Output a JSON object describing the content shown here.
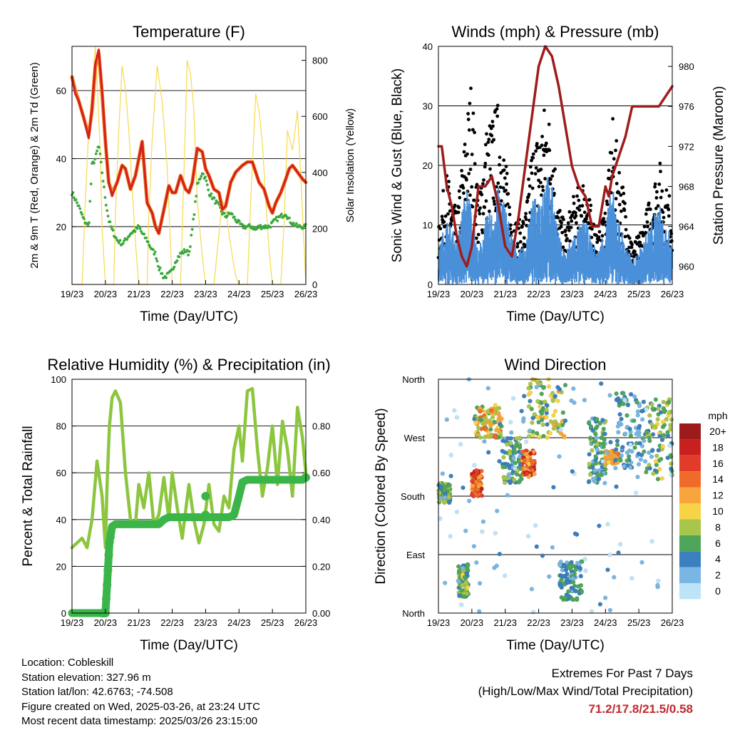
{
  "x_ticks": [
    "19/23",
    "20/23",
    "21/23",
    "22/23",
    "23/23",
    "24/23",
    "25/23",
    "26/23"
  ],
  "xlabel": "Time (Day/UTC)",
  "info": {
    "location": "Location: Cobleskill",
    "elevation": "Station elevation: 327.96 m",
    "latlon": "Station lat/lon: 42.6763; -74.508",
    "created": "Figure created on Wed, 2025-03-26, at 23:24 UTC",
    "recent": "Most recent data timestamp: 2025/03/26 23:15:00"
  },
  "extremes": {
    "title": "Extremes For Past 7 Days",
    "subtitle": "(High/Low/Max Wind/Total Precipitation)",
    "values": "71.2/17.8/21.5/0.58"
  },
  "colors": {
    "temp": "#d62020",
    "temp9": "#f08a1c",
    "dewpoint": "#3aa83a",
    "solar": "#f7d94c",
    "wind": "#4a90d9",
    "gust": "#000000",
    "pressure": "#a01c1c",
    "rh": "#8cc63f",
    "precip": "#3bb54a"
  },
  "chart_data": [
    {
      "type": "line",
      "title": "Temperature (F)",
      "ylabel": "2m & 9m T (Red, Orange) & 2m Td (Green)",
      "y2label": "Solar Insolation (Yellow)",
      "ylim": [
        3,
        73
      ],
      "yticks": [
        20,
        40,
        60
      ],
      "y2lim": [
        0,
        850
      ],
      "y2ticks": [
        0,
        200,
        400,
        600,
        800
      ],
      "x": [
        0,
        0.1,
        0.2,
        0.35,
        0.5,
        0.6,
        0.7,
        0.8,
        0.9,
        1.0,
        1.1,
        1.2,
        1.35,
        1.5,
        1.6,
        1.75,
        1.9,
        2.0,
        2.1,
        2.25,
        2.4,
        2.5,
        2.6,
        2.75,
        2.9,
        3.0,
        3.1,
        3.25,
        3.4,
        3.5,
        3.6,
        3.75,
        3.9,
        4.0,
        4.1,
        4.25,
        4.4,
        4.5,
        4.6,
        4.75,
        4.9,
        5.0,
        5.1,
        5.25,
        5.4,
        5.5,
        5.6,
        5.75,
        5.9,
        6.0,
        6.1,
        6.25,
        6.4,
        6.5,
        6.6,
        6.75,
        6.9,
        7.0
      ],
      "series": [
        {
          "name": "2m T",
          "values": [
            64,
            59,
            57,
            52,
            46,
            55,
            68,
            72,
            60,
            45,
            33,
            29,
            33,
            38,
            37,
            31,
            35,
            40,
            45,
            27,
            24,
            20,
            18,
            25,
            32,
            30,
            30,
            35,
            31,
            30,
            33,
            43,
            42,
            37,
            35,
            31,
            30,
            25,
            26,
            33,
            36,
            37,
            38,
            39,
            39,
            36,
            33,
            31,
            26,
            24,
            27,
            30,
            34,
            37,
            38,
            36,
            34,
            33
          ]
        },
        {
          "name": "9m T",
          "values": [
            64,
            60,
            57,
            52,
            47,
            54,
            67,
            71,
            59,
            45,
            33,
            30,
            33,
            38,
            37,
            31,
            35,
            40,
            45,
            27,
            24,
            20,
            18,
            25,
            32,
            30,
            30,
            35,
            31,
            30,
            33,
            43,
            42,
            37,
            35,
            31,
            30,
            25,
            26,
            33,
            36,
            37,
            38,
            39,
            39,
            36,
            33,
            31,
            26,
            24,
            27,
            30,
            34,
            37,
            38,
            36,
            34,
            33
          ]
        },
        {
          "name": "2m Td",
          "values": [
            30,
            28,
            26,
            22,
            20,
            38,
            40,
            44,
            36,
            28,
            22,
            19,
            16,
            15,
            16,
            18,
            19,
            20,
            18,
            16,
            13,
            12,
            8,
            5,
            6,
            7,
            10,
            12,
            13,
            12,
            19,
            32,
            36,
            34,
            30,
            28,
            26,
            24,
            23,
            24,
            22,
            21,
            20,
            20,
            20,
            19,
            20,
            20,
            20,
            21,
            22,
            23,
            24,
            22,
            21,
            20,
            20,
            20
          ]
        }
      ],
      "solar": {
        "x": [
          0,
          0.3,
          0.4,
          0.5,
          0.6,
          0.7,
          0.8,
          0.85,
          0.9,
          1.0,
          1.25,
          1.3,
          1.4,
          1.5,
          1.6,
          1.7,
          1.8,
          1.9,
          2.0,
          2.25,
          2.3,
          2.4,
          2.55,
          2.7,
          2.85,
          3.0,
          3.25,
          3.35,
          3.45,
          3.55,
          3.65,
          3.75,
          3.9,
          4.0,
          4.25,
          4.35,
          4.5,
          4.6,
          4.7,
          4.8,
          4.9,
          5.0,
          5.25,
          5.35,
          5.5,
          5.6,
          5.7,
          5.8,
          5.9,
          6.0,
          6.25,
          6.35,
          6.45,
          6.6,
          6.75,
          6.85,
          7.0
        ],
        "values": [
          0,
          0,
          300,
          550,
          700,
          850,
          600,
          450,
          200,
          0,
          0,
          250,
          550,
          780,
          700,
          550,
          350,
          150,
          0,
          0,
          250,
          520,
          780,
          650,
          420,
          0,
          0,
          400,
          800,
          750,
          620,
          300,
          100,
          0,
          0,
          120,
          300,
          270,
          180,
          100,
          30,
          0,
          0,
          300,
          680,
          620,
          500,
          300,
          120,
          0,
          0,
          220,
          550,
          480,
          620,
          380,
          0
        ]
      }
    },
    {
      "type": "line",
      "title": "Winds (mph) & Pressure (mb)",
      "ylabel": "Sonic Wind & Gust (Blue, Black)",
      "y2label": "Station Pressure (Maroon)",
      "ylim": [
        0,
        40
      ],
      "yticks": [
        0,
        10,
        20,
        30,
        40
      ],
      "y2lim": [
        958.2,
        982
      ],
      "y2ticks": [
        960,
        964,
        968,
        972,
        976,
        980
      ],
      "x": [
        0,
        0.1,
        0.25,
        0.4,
        0.55,
        0.7,
        0.85,
        1.0,
        1.1,
        1.2,
        1.4,
        1.6,
        1.8,
        2.0,
        2.2,
        2.4,
        2.6,
        2.8,
        3.0,
        3.2,
        3.4,
        3.6,
        3.8,
        4.0,
        4.2,
        4.4,
        4.6,
        4.8,
        5.0,
        5.1,
        5.2,
        5.4,
        5.6,
        5.8,
        6.0,
        6.2,
        6.4,
        6.6,
        6.8,
        7.0
      ],
      "series": [
        {
          "name": "Wind",
          "values": [
            4,
            6,
            8,
            7,
            5,
            9,
            12,
            10,
            6,
            4,
            8,
            9,
            12,
            10,
            6,
            4,
            5,
            10,
            11,
            14,
            12,
            6,
            4,
            6,
            7,
            8,
            5,
            4,
            8,
            10,
            12,
            8,
            5,
            3,
            4,
            6,
            8,
            10,
            7,
            6
          ]
        },
        {
          "name": "Gust",
          "values": [
            8,
            12,
            16,
            13,
            10,
            17,
            24,
            30,
            20,
            12,
            22,
            24,
            26,
            18,
            10,
            9,
            10,
            20,
            22,
            26,
            23,
            12,
            8,
            12,
            14,
            16,
            10,
            7,
            12,
            16,
            24,
            18,
            12,
            6,
            7,
            10,
            14,
            18,
            14,
            12
          ]
        },
        {
          "name": "Pressure",
          "values": [
            972,
            972,
            968,
            966,
            963,
            961,
            960,
            962,
            965,
            968,
            968,
            969,
            966,
            962,
            961,
            965,
            970,
            975,
            980,
            982,
            981,
            978,
            974,
            970,
            968,
            967,
            964,
            964,
            968,
            967,
            969,
            971,
            973,
            976,
            976,
            976,
            976,
            976,
            977,
            978
          ]
        }
      ]
    },
    {
      "type": "line",
      "title": "Relative Humidity (%) & Precipitation (in)",
      "ylabel": "Percent & Total Rainfall",
      "ylim": [
        0,
        100
      ],
      "yticks": [
        0,
        20,
        40,
        60,
        80,
        100
      ],
      "y2lim": [
        0,
        1
      ],
      "y2ticks": [
        "0.00",
        "0.20",
        "0.40",
        "0.60",
        "0.80"
      ],
      "x": [
        0,
        0.15,
        0.3,
        0.45,
        0.6,
        0.75,
        0.9,
        1.0,
        1.05,
        1.12,
        1.2,
        1.3,
        1.45,
        1.6,
        1.75,
        1.9,
        2.0,
        2.15,
        2.3,
        2.45,
        2.6,
        2.75,
        2.9,
        3.0,
        3.15,
        3.3,
        3.5,
        3.65,
        3.8,
        3.95,
        4.1,
        4.25,
        4.4,
        4.55,
        4.7,
        4.85,
        5.0,
        5.1,
        5.25,
        5.4,
        5.55,
        5.7,
        5.85,
        6.0,
        6.15,
        6.3,
        6.45,
        6.6,
        6.75,
        6.9,
        7.0
      ],
      "series": [
        {
          "name": "RH",
          "values": [
            28,
            30,
            32,
            28,
            40,
            65,
            50,
            28,
            55,
            80,
            92,
            95,
            90,
            60,
            40,
            38,
            55,
            45,
            60,
            38,
            42,
            58,
            40,
            60,
            45,
            32,
            55,
            40,
            30,
            38,
            55,
            38,
            35,
            50,
            45,
            70,
            80,
            65,
            95,
            96,
            70,
            50,
            62,
            80,
            55,
            82,
            70,
            50,
            88,
            75,
            60
          ]
        },
        {
          "name": "Precipitation",
          "values": [
            0,
            0,
            0,
            0,
            0,
            0,
            0,
            0,
            0.12,
            0.3,
            0.37,
            0.38,
            0.38,
            0.38,
            0.38,
            0.38,
            0.38,
            0.38,
            0.38,
            0.38,
            0.38,
            0.4,
            0.41,
            0.41,
            0.41,
            0.41,
            0.41,
            0.41,
            0.41,
            0.41,
            0.41,
            0.41,
            0.41,
            0.41,
            0.41,
            0.42,
            0.5,
            0.56,
            0.57,
            0.57,
            0.57,
            0.57,
            0.57,
            0.57,
            0.57,
            0.57,
            0.57,
            0.57,
            0.57,
            0.57,
            0.58
          ]
        }
      ]
    },
    {
      "type": "scatter",
      "title": "Wind Direction",
      "ylabel": "Direction (Colored By Speed)",
      "yticks": [
        "North",
        "East",
        "South",
        "West",
        "North"
      ],
      "ylim": [
        0,
        360
      ],
      "colorbar_title": "mph",
      "colorbar_labels": [
        "20+",
        "18",
        "16",
        "14",
        "12",
        "10",
        "8",
        "6",
        "4",
        "2",
        "0"
      ],
      "colorbar_colors": [
        "#9e1b1b",
        "#c8201f",
        "#e23b2a",
        "#f06a2a",
        "#f8a43c",
        "#f7d346",
        "#a8c64a",
        "#4fa65a",
        "#3b7fbf",
        "#7ab6e3",
        "#bde3f7"
      ],
      "clusters": [
        {
          "x": [
            0.0,
            0.35
          ],
          "dir": [
            170,
            200
          ],
          "speed": [
            4,
            9
          ]
        },
        {
          "x": [
            0.6,
            0.9
          ],
          "dir": [
            25,
            75
          ],
          "speed": [
            3,
            10
          ]
        },
        {
          "x": [
            1.0,
            1.3
          ],
          "dir": [
            180,
            220
          ],
          "speed": [
            10,
            18
          ]
        },
        {
          "x": [
            1.1,
            1.9
          ],
          "dir": [
            270,
            320
          ],
          "speed": [
            6,
            14
          ]
        },
        {
          "x": [
            1.9,
            2.5
          ],
          "dir": [
            200,
            270
          ],
          "speed": [
            2,
            8
          ]
        },
        {
          "x": [
            2.5,
            2.9
          ],
          "dir": [
            210,
            250
          ],
          "speed": [
            10,
            18
          ]
        },
        {
          "x": [
            2.7,
            3.8
          ],
          "dir": [
            270,
            360
          ],
          "speed": [
            4,
            12
          ]
        },
        {
          "x": [
            3.6,
            4.3
          ],
          "dir": [
            20,
            80
          ],
          "speed": [
            2,
            7
          ]
        },
        {
          "x": [
            4.5,
            5.0
          ],
          "dir": [
            200,
            300
          ],
          "speed": [
            2,
            8
          ]
        },
        {
          "x": [
            5.0,
            5.4
          ],
          "dir": [
            230,
            250
          ],
          "speed": [
            10,
            14
          ]
        },
        {
          "x": [
            5.3,
            6.2
          ],
          "dir": [
            220,
            340
          ],
          "speed": [
            1,
            6
          ]
        },
        {
          "x": [
            6.2,
            7.0
          ],
          "dir": [
            200,
            330
          ],
          "speed": [
            3,
            10
          ]
        },
        {
          "x": [
            0.0,
            7.0
          ],
          "dir": [
            0,
            360
          ],
          "speed": [
            0,
            4
          ]
        }
      ]
    }
  ]
}
